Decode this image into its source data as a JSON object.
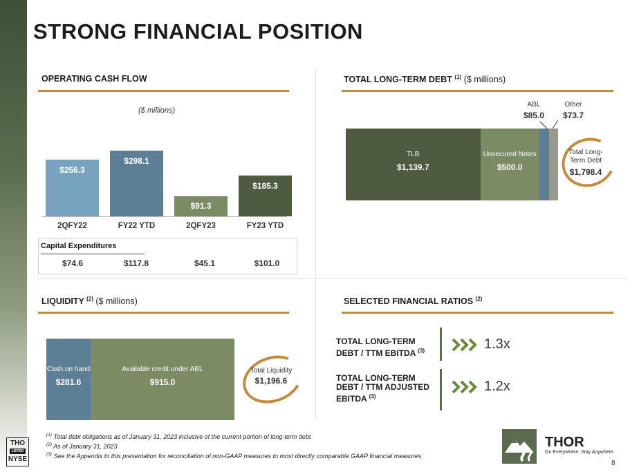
{
  "title": "STRONG FINANCIAL POSITION",
  "sections": {
    "ocf": {
      "title": "OPERATING CASH FLOW"
    },
    "debt": {
      "title": "TOTAL LONG-TERM DEBT",
      "note": "(1)",
      "units": "($ millions)"
    },
    "liquidity": {
      "title": "LIQUIDITY",
      "note": "(2)",
      "units": "($ millions)"
    },
    "ratios": {
      "title": "SELECTED FINANCIAL RATIOS",
      "note": "(2)"
    }
  },
  "chart_data": [
    {
      "type": "bar",
      "title": "OPERATING CASH FLOW",
      "units": "($ millions)",
      "categories": [
        "2QFY22",
        "FY22 YTD",
        "2QFY23",
        "FY23 YTD"
      ],
      "values": [
        256.3,
        298.1,
        91.3,
        185.3
      ],
      "labels": [
        "$256.3",
        "$298.1",
        "$91.3",
        "$185.3"
      ],
      "colors": [
        "#78a3bf",
        "#5d7f95",
        "#7b8b63",
        "#4f5b40"
      ],
      "ylim": [
        0,
        305
      ]
    },
    {
      "type": "stacked-bar",
      "title": "TOTAL LONG-TERM DEBT",
      "segments": [
        {
          "name": "TLB",
          "value": 1139.7,
          "label": "$1,139.7",
          "color": "#4f5b40"
        },
        {
          "name": "Unsecured Notes",
          "value": 500.0,
          "label": "$500.0",
          "color": "#7b8b63"
        },
        {
          "name": "ABL",
          "value": 85.0,
          "label": "$85.0",
          "color": "#5d7f95"
        },
        {
          "name": "Other",
          "value": 73.7,
          "label": "$73.7",
          "color": "#9a9a8a"
        }
      ],
      "total": {
        "label": "Total Long-Term Debt",
        "line1": "Total Long-",
        "line2": "Term Debt",
        "value": "$1,798.4"
      }
    },
    {
      "type": "stacked-bar",
      "title": "LIQUIDITY",
      "segments": [
        {
          "name": "Cash on hand",
          "value": 281.6,
          "label": "$281.6",
          "color": "#5d7f95"
        },
        {
          "name": "Available credit under ABL",
          "value": 915.0,
          "label": "$915.0",
          "color": "#7b8b63"
        }
      ],
      "total": {
        "label": "Total Liquidity",
        "value": "$1,196.6"
      }
    }
  ],
  "capex": {
    "title": "Capital Expenditures",
    "values": [
      "$74.6",
      "$117.8",
      "$45.1",
      "$101.0"
    ]
  },
  "ratios": [
    {
      "line1": "TOTAL LONG-TERM",
      "line2": "DEBT / TTM EBITDA",
      "line3": "",
      "note": "(3)",
      "value": "1.3x"
    },
    {
      "line1": "TOTAL LONG-TERM",
      "line2": "DEBT / TTM ADJUSTED",
      "line3": "EBITDA",
      "note": "(3)",
      "value": "1.2x"
    }
  ],
  "footnotes": [
    {
      "mark": "(1)",
      "text": "Total debt obligations as of January 31, 2023 inclusive of the current portion of long-term debt"
    },
    {
      "mark": "(2)",
      "text": "As of January 31, 2023"
    },
    {
      "mark": "(3)",
      "text": "See the Appendix to this presentation for reconciliation of non-GAAP measures to most directly comparable GAAP financial measures"
    }
  ],
  "brand": {
    "exchange_badge": {
      "line1": "THO",
      "line2": "LISTED",
      "line3": "NYSE"
    },
    "name": "THOR",
    "tagline": "Go Everywhere. Stay Anywhere.",
    "logo_icon": "mountain-road-logo-icon",
    "accent": "#c58a3c"
  },
  "page_number": "8"
}
